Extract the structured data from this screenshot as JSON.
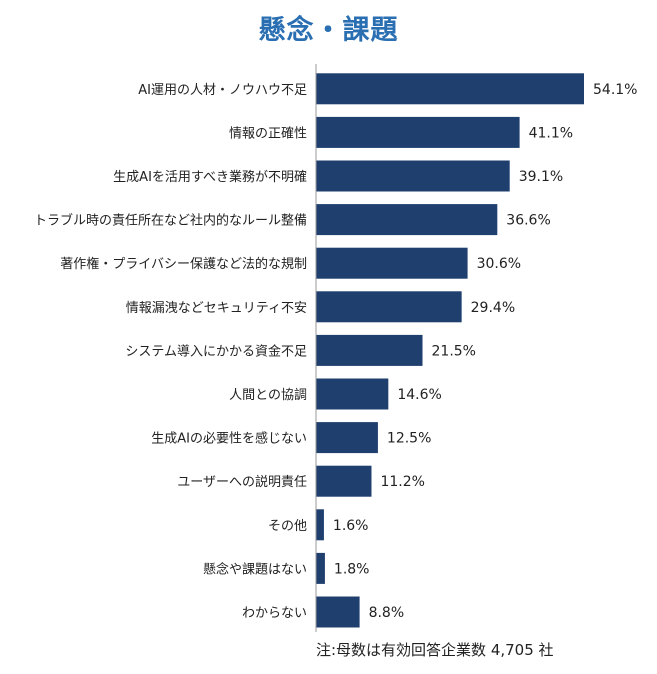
{
  "chart_data": {
    "type": "bar",
    "orientation": "horizontal",
    "title": "懸念・課題",
    "categories": [
      "AI運用の人材・ノウハウ不足",
      "情報の正確性",
      "生成AIを活用すべき業務が不明確",
      "トラブル時の責任所在など社内的なルール整備",
      "著作権・プライバシー保護など法的な規制",
      "情報漏洩などセキュリティ不安",
      "システム導入にかかる資金不足",
      "人間との協調",
      "生成AIの必要性を感じない",
      "ユーザーへの説明責任",
      "その他",
      "懸念や課題はない",
      "わからない"
    ],
    "values": [
      54.1,
      41.1,
      39.1,
      36.6,
      30.6,
      29.4,
      21.5,
      14.6,
      12.5,
      11.2,
      1.6,
      1.8,
      8.8
    ],
    "value_labels": [
      "54.1%",
      "41.1%",
      "39.1%",
      "36.6%",
      "30.6%",
      "29.4%",
      "21.5%",
      "14.6%",
      "12.5%",
      "11.2%",
      "1.6%",
      "1.8%",
      "8.8%"
    ],
    "bar_color": "#1f3f6e",
    "title_color": "#2b6fb3",
    "footnote": "注:母数は有効回答企業数 4,705 社"
  }
}
